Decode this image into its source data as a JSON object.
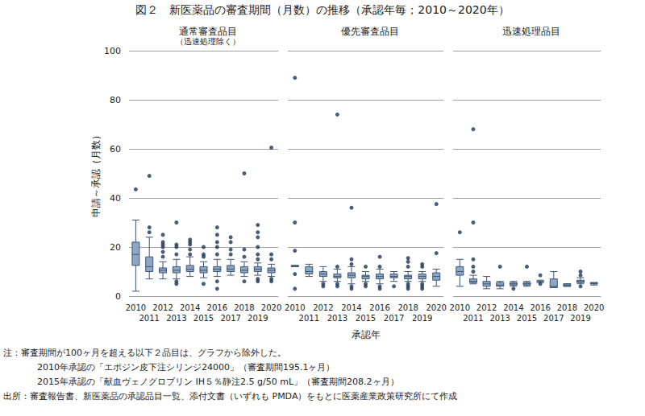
{
  "figure": {
    "title": "図２　新医薬品の審査期間（月数）の推移（承認年毎；2010～2020年）",
    "notes": [
      "注：審査期間が100ヶ月を超える以下２品目は、グラフから除外した。",
      "2010年承認の「エポジン皮下注シリンジ24000」（審査期間195.1ヶ月）",
      "2015年承認の「献血ヴェノグロブリン IH５％静注2.5 g/50 mL」（審査期間208.2ヶ月）"
    ],
    "source": "出所：審査報告書、新医薬品の承認品目一覧、添付文書（いずれも PMDA）をもとに医薬産業政策研究所にて作成"
  },
  "chart_data": [
    {
      "type": "boxplot",
      "title": "通常審査品目",
      "subtitle": "（迅速処理除く）",
      "y_label": "申請～承認（月数）",
      "categories": [
        "2010",
        "2011",
        "2012",
        "2013",
        "2014",
        "2015",
        "2016",
        "2017",
        "2018",
        "2019",
        "2020"
      ],
      "boxes": [
        [
          2,
          12.5,
          17,
          22,
          31
        ],
        [
          7,
          10,
          12,
          16,
          24
        ],
        [
          7,
          9.5,
          10.5,
          11.5,
          14
        ],
        [
          7,
          9.5,
          10.5,
          12,
          15
        ],
        [
          8,
          10,
          11,
          12.5,
          16
        ],
        [
          7.5,
          9.5,
          10.5,
          12,
          14
        ],
        [
          8,
          10,
          11,
          12,
          15
        ],
        [
          8.5,
          10,
          11,
          12.5,
          15
        ],
        [
          8,
          9.5,
          10.5,
          12,
          14
        ],
        [
          8.5,
          10,
          11,
          12,
          13.5
        ],
        [
          8,
          9.5,
          10.5,
          11.5,
          13
        ]
      ],
      "outliers": [
        [
          43.5
        ],
        [
          26,
          28,
          49
        ],
        [
          16,
          18,
          20,
          21,
          22,
          25
        ],
        [
          5,
          6,
          17,
          20,
          21,
          30
        ],
        [
          17,
          19,
          21,
          22,
          23
        ],
        [
          5,
          16,
          17,
          20
        ],
        [
          3,
          6,
          17,
          20,
          22,
          25,
          28
        ],
        [
          17,
          19,
          22,
          24
        ],
        [
          6,
          16,
          19,
          50
        ],
        [
          6,
          7,
          15,
          17,
          20,
          24,
          26,
          29
        ],
        [
          6,
          7,
          15,
          17,
          60.5
        ]
      ],
      "color": "#8fa7c6",
      "ylim": [
        0,
        100
      ],
      "yticks": [
        0,
        20,
        40,
        60,
        80,
        100
      ],
      "grid": true
    },
    {
      "type": "boxplot",
      "title": "優先審査品目",
      "x_label": "承認年",
      "categories": [
        "2010",
        "2011",
        "2012",
        "2013",
        "2014",
        "2015",
        "2016",
        "2017",
        "2018",
        "2019",
        "2020"
      ],
      "boxes": [
        [
          12,
          12,
          12,
          12.5,
          12.5
        ],
        [
          8,
          9,
          10,
          12,
          13
        ],
        [
          6,
          8,
          9,
          10,
          12
        ],
        [
          6,
          7.5,
          8,
          9,
          11
        ],
        [
          5,
          7.5,
          8.5,
          9.5,
          12
        ],
        [
          6,
          7,
          8,
          8.5,
          10
        ],
        [
          5,
          7,
          8,
          9,
          11
        ],
        [
          6,
          7.5,
          8,
          9,
          10
        ],
        [
          6,
          7,
          8,
          8.5,
          10
        ],
        [
          6,
          7,
          8,
          9,
          10
        ],
        [
          4,
          6.5,
          8,
          9.5,
          11
        ]
      ],
      "outliers": [
        [
          3,
          9,
          18.5,
          30,
          89
        ],
        [],
        [
          4,
          5
        ],
        [
          4,
          5,
          12,
          74
        ],
        [
          3,
          4,
          13,
          15,
          36
        ],
        [
          4,
          5,
          12
        ],
        [
          3,
          4,
          12,
          16
        ],
        [
          4
        ],
        [
          3,
          4,
          5,
          12,
          14,
          15.5
        ],
        [
          3,
          4,
          5,
          12,
          13
        ],
        [
          17.5,
          37.5
        ]
      ],
      "color": "#8fa7c6",
      "ylim": [
        0,
        100
      ],
      "yticks": [
        0,
        20,
        40,
        60,
        80,
        100
      ],
      "grid": true,
      "tick_labels": "x"
    },
    {
      "type": "boxplot",
      "title": "迅速処理品目",
      "categories": [
        "2010",
        "2011",
        "2012",
        "2013",
        "2014",
        "2015",
        "2016",
        "2017",
        "2018",
        "2019",
        "2020"
      ],
      "boxes": [
        [
          4,
          8.5,
          10,
          12,
          15
        ],
        [
          5,
          5.5,
          6,
          7,
          8.5
        ],
        [
          3,
          4,
          5,
          6,
          8
        ],
        [
          3,
          4,
          4.5,
          5.5,
          6
        ],
        [
          4,
          4.5,
          5,
          5.5,
          6
        ],
        [
          4,
          4.5,
          5,
          5.5,
          6
        ],
        [
          5.5,
          6,
          6,
          6,
          6.5
        ],
        [
          3.5,
          3.5,
          4,
          7,
          10
        ],
        [
          4,
          4,
          4.5,
          5,
          5
        ],
        [
          5,
          5.5,
          6,
          6.5,
          7.5
        ],
        [
          4.5,
          5,
          5,
          5.5,
          5.5
        ]
      ],
      "outliers": [
        [
          26
        ],
        [
          10,
          12,
          15,
          30,
          68
        ],
        [],
        [
          12
        ],
        [
          3
        ],
        [
          12
        ],
        [
          5,
          8.5
        ],
        [],
        [],
        [
          4,
          8.5,
          10
        ],
        []
      ],
      "color": "#8fa7c6",
      "ylim": [
        0,
        100
      ],
      "yticks": [
        0,
        20,
        40,
        60,
        80,
        100
      ],
      "grid": true,
      "tick_labels": "x"
    }
  ]
}
